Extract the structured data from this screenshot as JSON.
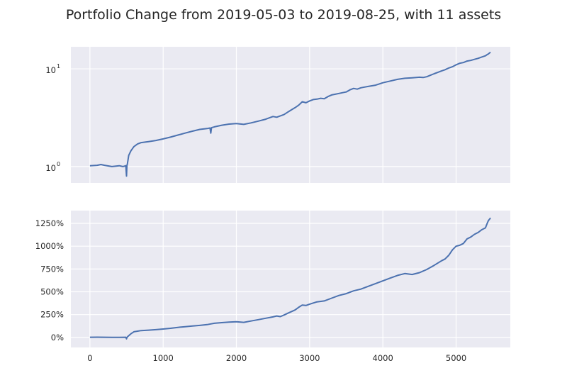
{
  "figure": {
    "title": "Portfolio Change from 2019-05-03 to 2019-08-25, with 11 assets"
  },
  "colors": {
    "series": "#4c72b0",
    "panel_background": "#eaeaf2",
    "grid": "#ffffff"
  },
  "chart_data": [
    {
      "type": "line",
      "yscale": "log",
      "grid": true,
      "xlim": [
        -260,
        5740
      ],
      "ylim": [
        0.68,
        16.8
      ],
      "xticks": [
        0,
        1000,
        2000,
        3000,
        4000,
        5000
      ],
      "show_x_tick_labels": false,
      "yticks": [
        {
          "value": 1,
          "base": "10",
          "exponent": "0"
        },
        {
          "value": 10,
          "base": "10",
          "exponent": "1"
        }
      ],
      "series": [
        {
          "x": [
            0,
            100,
            150,
            200,
            300,
            400,
            450,
            490,
            500,
            505,
            510,
            530,
            560,
            600,
            650,
            700,
            800,
            900,
            1000,
            1100,
            1200,
            1300,
            1400,
            1500,
            1600,
            1640,
            1650,
            1660,
            1700,
            1800,
            1900,
            2000,
            2100,
            2200,
            2300,
            2400,
            2450,
            2500,
            2550,
            2600,
            2650,
            2700,
            2750,
            2800,
            2850,
            2900,
            2950,
            3000,
            3050,
            3100,
            3150,
            3200,
            3250,
            3300,
            3350,
            3400,
            3450,
            3500,
            3550,
            3600,
            3650,
            3700,
            3750,
            3800,
            3850,
            3900,
            3950,
            4000,
            4100,
            4200,
            4300,
            4400,
            4500,
            4550,
            4600,
            4650,
            4700,
            4750,
            4800,
            4850,
            4900,
            4950,
            5000,
            5050,
            5100,
            5150,
            5200,
            5250,
            5300,
            5350,
            5400,
            5420,
            5440,
            5460,
            5470
          ],
          "values": [
            1.02,
            1.03,
            1.05,
            1.03,
            1.0,
            1.02,
            1.0,
            1.02,
            0.8,
            1.03,
            1.05,
            1.3,
            1.45,
            1.6,
            1.7,
            1.76,
            1.8,
            1.85,
            1.92,
            2.0,
            2.1,
            2.2,
            2.3,
            2.4,
            2.45,
            2.48,
            2.2,
            2.5,
            2.55,
            2.65,
            2.72,
            2.75,
            2.7,
            2.8,
            2.92,
            3.05,
            3.15,
            3.25,
            3.2,
            3.3,
            3.4,
            3.6,
            3.8,
            4.0,
            4.25,
            4.6,
            4.5,
            4.7,
            4.85,
            4.9,
            5.0,
            4.95,
            5.2,
            5.4,
            5.5,
            5.6,
            5.7,
            5.8,
            6.1,
            6.3,
            6.2,
            6.4,
            6.5,
            6.6,
            6.7,
            6.8,
            7.0,
            7.2,
            7.5,
            7.8,
            8.0,
            8.1,
            8.2,
            8.15,
            8.3,
            8.6,
            8.9,
            9.2,
            9.5,
            9.8,
            10.2,
            10.5,
            11.0,
            11.4,
            11.6,
            12.0,
            12.2,
            12.5,
            12.8,
            13.2,
            13.6,
            13.9,
            14.2,
            14.6,
            14.8
          ]
        }
      ]
    },
    {
      "type": "line",
      "yscale": "linear",
      "grid": true,
      "xlim": [
        -260,
        5740
      ],
      "ylim": [
        -110,
        1390
      ],
      "xticks": [
        0,
        1000,
        2000,
        3000,
        4000,
        5000
      ],
      "xtick_labels": [
        "0",
        "1000",
        "2000",
        "3000",
        "4000",
        "5000"
      ],
      "yticks": [
        0,
        250,
        500,
        750,
        1000,
        1250
      ],
      "ytick_labels": [
        "0%",
        "250%",
        "500%",
        "750%",
        "1000%",
        "1250%"
      ],
      "series": [
        {
          "x": [
            0,
            100,
            200,
            300,
            400,
            490,
            500,
            505,
            520,
            560,
            600,
            700,
            800,
            900,
            1000,
            1100,
            1200,
            1300,
            1400,
            1500,
            1600,
            1650,
            1700,
            1800,
            1900,
            2000,
            2100,
            2200,
            2300,
            2400,
            2500,
            2550,
            2600,
            2650,
            2700,
            2800,
            2850,
            2900,
            2950,
            3000,
            3100,
            3200,
            3300,
            3400,
            3500,
            3600,
            3700,
            3800,
            3900,
            4000,
            4100,
            4200,
            4300,
            4400,
            4500,
            4600,
            4700,
            4800,
            4850,
            4900,
            4950,
            5000,
            5050,
            5100,
            5150,
            5200,
            5250,
            5300,
            5350,
            5400,
            5420,
            5440,
            5460,
            5470
          ],
          "values": [
            2,
            3,
            2,
            0,
            0,
            2,
            -15,
            0,
            12,
            40,
            62,
            75,
            80,
            85,
            92,
            100,
            110,
            118,
            125,
            132,
            140,
            148,
            155,
            162,
            168,
            172,
            165,
            180,
            195,
            210,
            225,
            235,
            228,
            245,
            265,
            300,
            330,
            355,
            350,
            365,
            390,
            400,
            430,
            460,
            480,
            510,
            530,
            560,
            590,
            620,
            650,
            680,
            700,
            690,
            710,
            745,
            790,
            840,
            860,
            900,
            960,
            1000,
            1010,
            1030,
            1080,
            1100,
            1130,
            1150,
            1180,
            1200,
            1240,
            1280,
            1300,
            1310
          ]
        }
      ]
    }
  ]
}
